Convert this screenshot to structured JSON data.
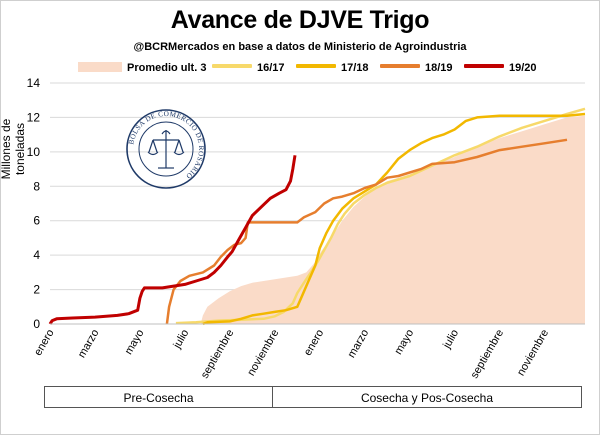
{
  "title": "Avance de DJVE Trigo",
  "subtitle": "@BCRMercados en base a datos de Ministerio de Agroindustria",
  "seal_text": "BOLSA DE COMERCIO DE ROSARIO",
  "phases": {
    "pre": "Pre-Cosecha",
    "post": "Cosecha y Pos-Cosecha"
  },
  "colors": {
    "promedio": "#fadbc8",
    "s1617": "#f7d96a",
    "s1718": "#f2b800",
    "s1819": "#e67e2e",
    "s1920": "#c00000"
  },
  "chart_data": {
    "type": "line",
    "title": "Avance de DJVE Trigo",
    "ylabel": "Millones de toneladas",
    "xlabel": "",
    "ylim": [
      0,
      14
    ],
    "yticks": [
      0,
      2,
      4,
      6,
      8,
      10,
      12,
      14
    ],
    "grid": "horizontal",
    "x_unit": "month index over 24 months (0 = enero of pre-harvest year)",
    "xlim": [
      0,
      23.8
    ],
    "xticks": [
      {
        "x": 0,
        "label": "enero"
      },
      {
        "x": 2,
        "label": "marzo"
      },
      {
        "x": 4,
        "label": "mayo"
      },
      {
        "x": 6,
        "label": "julio"
      },
      {
        "x": 8,
        "label": "septiembre"
      },
      {
        "x": 10,
        "label": "noviembre"
      },
      {
        "x": 12,
        "label": "enero"
      },
      {
        "x": 14,
        "label": "marzo"
      },
      {
        "x": 16,
        "label": "mayo"
      },
      {
        "x": 18,
        "label": "julio"
      },
      {
        "x": 20,
        "label": "septiembre"
      },
      {
        "x": 22,
        "label": "noviembre"
      }
    ],
    "legend_position": "top",
    "series": [
      {
        "name": "Promedio ult. 3",
        "kind": "area",
        "points": [
          [
            6.7,
            0.0
          ],
          [
            6.8,
            0.5
          ],
          [
            7.0,
            1.0
          ],
          [
            7.5,
            1.5
          ],
          [
            8.0,
            1.9
          ],
          [
            8.5,
            2.2
          ],
          [
            9.0,
            2.4
          ],
          [
            9.5,
            2.5
          ],
          [
            10.0,
            2.6
          ],
          [
            10.5,
            2.7
          ],
          [
            11.0,
            2.8
          ],
          [
            11.4,
            3.0
          ],
          [
            11.8,
            3.6
          ],
          [
            12.0,
            4.1
          ],
          [
            12.5,
            5.0
          ],
          [
            13.0,
            6.0
          ],
          [
            13.5,
            6.8
          ],
          [
            14.0,
            7.4
          ],
          [
            14.5,
            7.9
          ],
          [
            15.0,
            8.3
          ],
          [
            16.0,
            8.7
          ],
          [
            17.0,
            9.2
          ],
          [
            18.0,
            9.7
          ],
          [
            19.0,
            10.3
          ],
          [
            20.0,
            10.8
          ],
          [
            21.0,
            11.2
          ],
          [
            22.0,
            11.6
          ],
          [
            23.0,
            12.0
          ],
          [
            23.8,
            12.1
          ]
        ]
      },
      {
        "name": "16/17",
        "kind": "line",
        "points": [
          [
            5.6,
            0.05
          ],
          [
            6.5,
            0.1
          ],
          [
            7.5,
            0.2
          ],
          [
            8.5,
            0.25
          ],
          [
            9.5,
            0.3
          ],
          [
            10.0,
            0.45
          ],
          [
            10.4,
            0.7
          ],
          [
            10.8,
            1.2
          ],
          [
            11.0,
            1.8
          ],
          [
            11.3,
            2.4
          ],
          [
            11.6,
            3.0
          ],
          [
            11.9,
            3.6
          ],
          [
            12.2,
            4.3
          ],
          [
            12.5,
            5.0
          ],
          [
            12.8,
            5.8
          ],
          [
            13.1,
            6.4
          ],
          [
            13.5,
            7.0
          ],
          [
            14.0,
            7.5
          ],
          [
            14.5,
            7.9
          ],
          [
            15.0,
            8.2
          ],
          [
            16.0,
            8.6
          ],
          [
            17.0,
            9.2
          ],
          [
            18.0,
            9.8
          ],
          [
            19.0,
            10.3
          ],
          [
            20.0,
            10.9
          ],
          [
            21.0,
            11.4
          ],
          [
            22.0,
            11.8
          ],
          [
            23.0,
            12.2
          ],
          [
            23.8,
            12.5
          ]
        ]
      },
      {
        "name": "17/18",
        "kind": "line",
        "points": [
          [
            6.8,
            0.0
          ],
          [
            7.0,
            0.1
          ],
          [
            8.0,
            0.15
          ],
          [
            8.5,
            0.3
          ],
          [
            9.0,
            0.5
          ],
          [
            9.5,
            0.6
          ],
          [
            10.0,
            0.7
          ],
          [
            10.5,
            0.8
          ],
          [
            11.0,
            1.0
          ],
          [
            11.2,
            1.6
          ],
          [
            11.5,
            2.5
          ],
          [
            11.8,
            3.4
          ],
          [
            12.0,
            4.4
          ],
          [
            12.3,
            5.3
          ],
          [
            12.6,
            6.0
          ],
          [
            13.0,
            6.7
          ],
          [
            13.5,
            7.3
          ],
          [
            14.0,
            7.7
          ],
          [
            14.5,
            8.1
          ],
          [
            15.0,
            8.8
          ],
          [
            15.5,
            9.6
          ],
          [
            16.0,
            10.1
          ],
          [
            16.5,
            10.5
          ],
          [
            17.0,
            10.8
          ],
          [
            17.5,
            11.0
          ],
          [
            18.0,
            11.3
          ],
          [
            18.5,
            11.8
          ],
          [
            19.0,
            12.0
          ],
          [
            20.0,
            12.1
          ],
          [
            21.0,
            12.1
          ],
          [
            22.0,
            12.1
          ],
          [
            23.0,
            12.1
          ],
          [
            23.8,
            12.2
          ]
        ]
      },
      {
        "name": "18/19",
        "kind": "line",
        "points": [
          [
            5.2,
            0.0
          ],
          [
            5.3,
            1.0
          ],
          [
            5.5,
            2.0
          ],
          [
            5.8,
            2.5
          ],
          [
            6.2,
            2.8
          ],
          [
            6.8,
            3.0
          ],
          [
            7.3,
            3.4
          ],
          [
            7.6,
            3.9
          ],
          [
            7.9,
            4.3
          ],
          [
            8.2,
            4.6
          ],
          [
            8.5,
            4.7
          ],
          [
            8.7,
            5.0
          ],
          [
            8.8,
            5.9
          ],
          [
            9.5,
            5.9
          ],
          [
            10.0,
            5.9
          ],
          [
            10.5,
            5.9
          ],
          [
            11.0,
            5.9
          ],
          [
            11.3,
            6.2
          ],
          [
            11.8,
            6.5
          ],
          [
            12.2,
            7.0
          ],
          [
            12.6,
            7.3
          ],
          [
            13.0,
            7.4
          ],
          [
            13.5,
            7.6
          ],
          [
            14.0,
            7.9
          ],
          [
            14.5,
            8.1
          ],
          [
            15.0,
            8.5
          ],
          [
            15.5,
            8.6
          ],
          [
            16.0,
            8.8
          ],
          [
            16.5,
            9.0
          ],
          [
            17.0,
            9.3
          ],
          [
            18.0,
            9.4
          ],
          [
            19.0,
            9.7
          ],
          [
            20.0,
            10.1
          ],
          [
            21.0,
            10.3
          ],
          [
            22.0,
            10.5
          ],
          [
            23.0,
            10.7
          ]
        ]
      },
      {
        "name": "19/20",
        "kind": "line",
        "points": [
          [
            0.0,
            0.0
          ],
          [
            0.1,
            0.2
          ],
          [
            0.3,
            0.3
          ],
          [
            1.0,
            0.35
          ],
          [
            2.0,
            0.4
          ],
          [
            3.0,
            0.5
          ],
          [
            3.5,
            0.6
          ],
          [
            3.9,
            0.8
          ],
          [
            4.0,
            1.5
          ],
          [
            4.1,
            1.9
          ],
          [
            4.2,
            2.1
          ],
          [
            5.0,
            2.1
          ],
          [
            5.5,
            2.2
          ],
          [
            6.0,
            2.3
          ],
          [
            6.5,
            2.5
          ],
          [
            7.0,
            2.7
          ],
          [
            7.3,
            3.0
          ],
          [
            7.6,
            3.4
          ],
          [
            7.9,
            3.9
          ],
          [
            8.1,
            4.2
          ],
          [
            8.4,
            4.9
          ],
          [
            8.7,
            5.6
          ],
          [
            9.0,
            6.3
          ],
          [
            9.4,
            6.8
          ],
          [
            9.8,
            7.3
          ],
          [
            10.2,
            7.6
          ],
          [
            10.5,
            7.8
          ],
          [
            10.7,
            8.3
          ],
          [
            10.8,
            9.0
          ],
          [
            10.9,
            9.8
          ]
        ]
      }
    ]
  }
}
